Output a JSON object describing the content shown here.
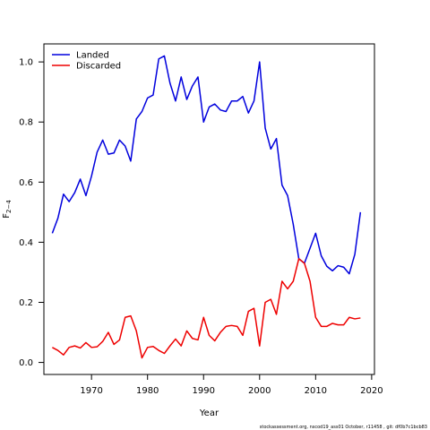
{
  "chart_data": {
    "type": "line",
    "xlabel": "Year",
    "ylabel": "F",
    "ylabel_sub": "2−4",
    "xlim": [
      1961.5,
      2020.5
    ],
    "ylim": [
      -0.04,
      1.06
    ],
    "x_ticks": [
      1970,
      1980,
      1990,
      2000,
      2010,
      2020
    ],
    "y_ticks": [
      0.0,
      0.2,
      0.4,
      0.6,
      0.8,
      1.0
    ],
    "x_tick_labels": [
      "1970",
      "1980",
      "1990",
      "2000",
      "2010",
      "2020"
    ],
    "y_tick_labels": [
      "0.0",
      "0.2",
      "0.4",
      "0.6",
      "0.8",
      "1.0"
    ],
    "grid": false,
    "legend_position": "top-left",
    "x": [
      1963,
      1964,
      1965,
      1966,
      1967,
      1968,
      1969,
      1970,
      1971,
      1972,
      1973,
      1974,
      1975,
      1976,
      1977,
      1978,
      1979,
      1980,
      1981,
      1982,
      1983,
      1984,
      1985,
      1986,
      1987,
      1988,
      1989,
      1990,
      1991,
      1992,
      1993,
      1994,
      1995,
      1996,
      1997,
      1998,
      1999,
      2000,
      2001,
      2002,
      2003,
      2004,
      2005,
      2006,
      2007,
      2008,
      2009,
      2010,
      2011,
      2012,
      2013,
      2014,
      2015,
      2016,
      2017,
      2018
    ],
    "series": [
      {
        "name": "Landed",
        "color": "#0000dd",
        "values": [
          0.43,
          0.48,
          0.56,
          0.535,
          0.565,
          0.61,
          0.555,
          0.62,
          0.7,
          0.74,
          0.693,
          0.697,
          0.74,
          0.72,
          0.67,
          0.81,
          0.835,
          0.88,
          0.89,
          1.01,
          1.02,
          0.93,
          0.87,
          0.95,
          0.875,
          0.92,
          0.95,
          0.8,
          0.85,
          0.86,
          0.84,
          0.835,
          0.87,
          0.87,
          0.885,
          0.83,
          0.87,
          1.0,
          0.78,
          0.71,
          0.745,
          0.59,
          0.555,
          0.46,
          0.345,
          0.33,
          0.38,
          0.43,
          0.355,
          0.32,
          0.305,
          0.322,
          0.317,
          0.295,
          0.36,
          0.5
        ]
      },
      {
        "name": "Discarded",
        "color": "#ee0000",
        "values": [
          0.05,
          0.04,
          0.025,
          0.05,
          0.055,
          0.048,
          0.066,
          0.05,
          0.052,
          0.07,
          0.1,
          0.06,
          0.075,
          0.15,
          0.155,
          0.105,
          0.015,
          0.05,
          0.053,
          0.04,
          0.03,
          0.055,
          0.078,
          0.055,
          0.105,
          0.08,
          0.075,
          0.15,
          0.09,
          0.072,
          0.1,
          0.12,
          0.123,
          0.12,
          0.09,
          0.17,
          0.18,
          0.055,
          0.2,
          0.21,
          0.16,
          0.27,
          0.245,
          0.27,
          0.345,
          0.33,
          0.27,
          0.15,
          0.12,
          0.12,
          0.13,
          0.125,
          0.125,
          0.15,
          0.145,
          0.148
        ]
      }
    ]
  },
  "footer": "stockassessment.org, nscod19_ass01 October, r11458 , git: df0b7c1bcb83"
}
